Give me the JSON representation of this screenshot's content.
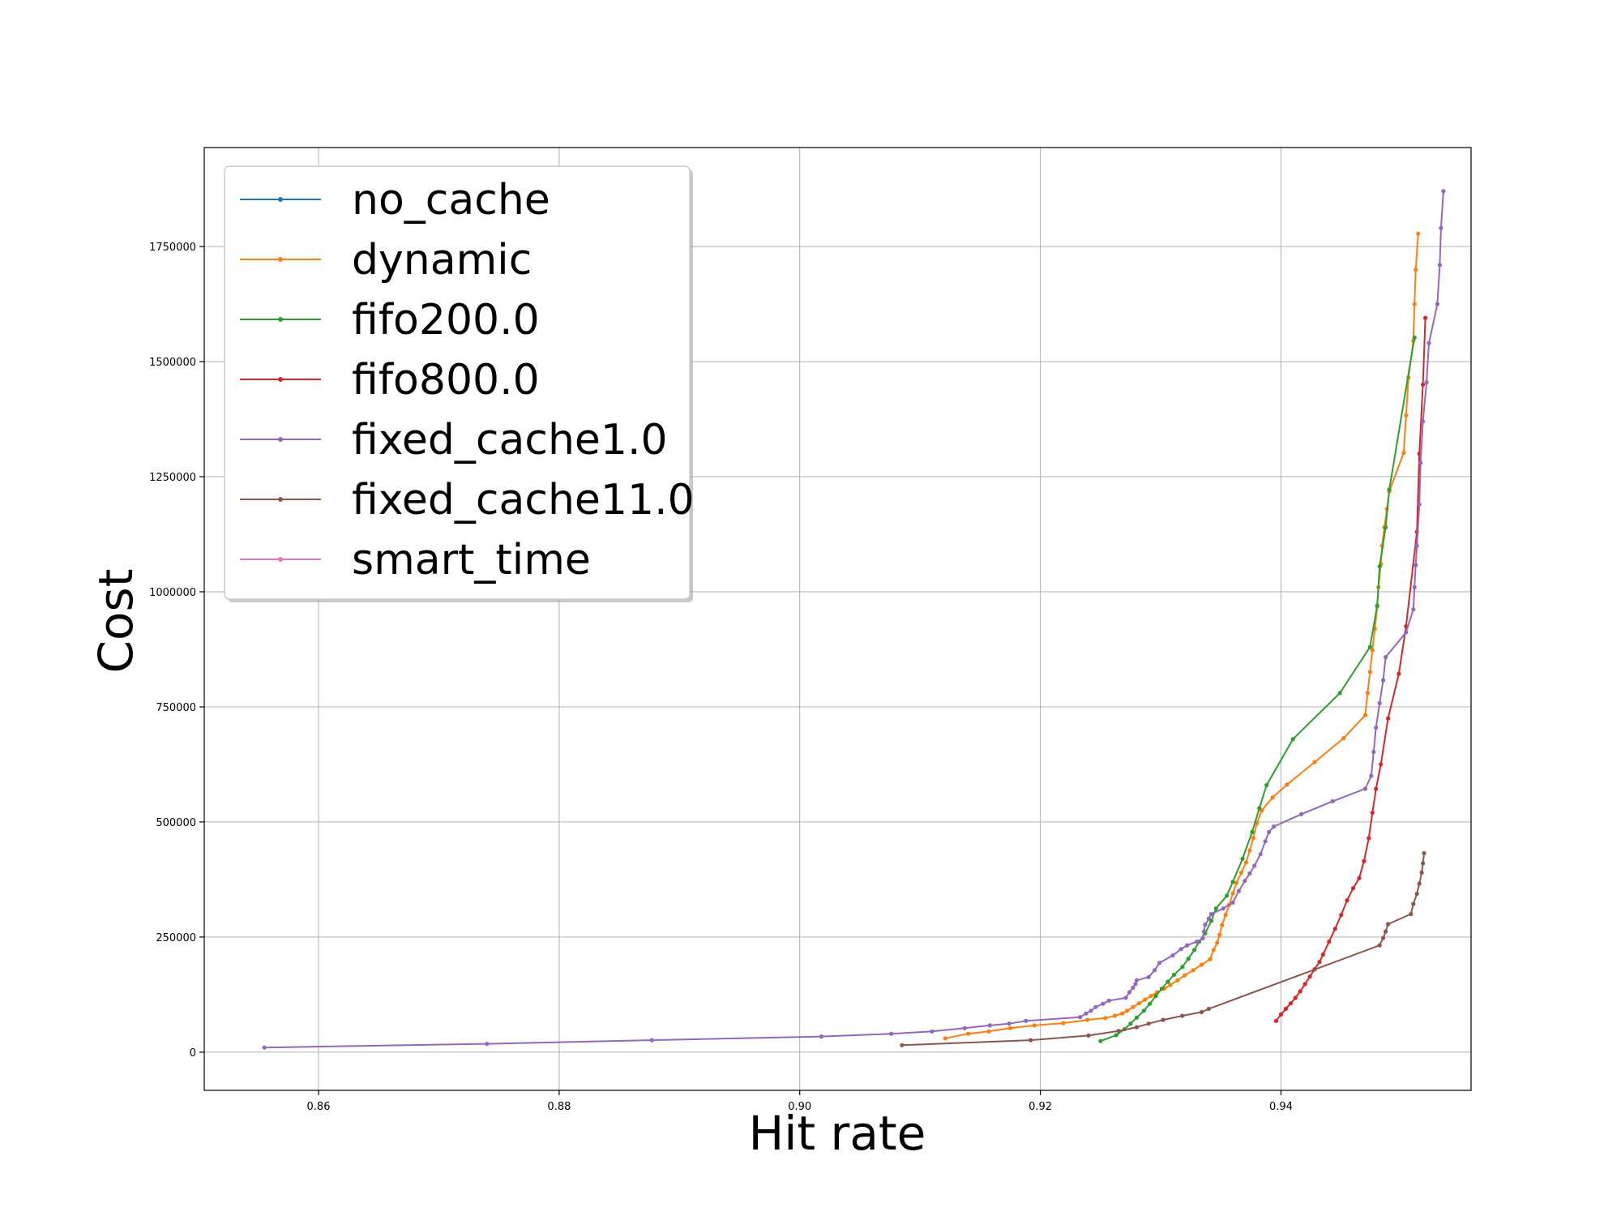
{
  "chart_data": {
    "type": "line",
    "title": "",
    "xlabel": "Hit rate",
    "ylabel": "Cost",
    "xlim": [
      0.8505,
      0.9558
    ],
    "ylim": [
      -83000,
      1965000
    ],
    "x_ticks": [
      0.86,
      0.88,
      0.9,
      0.92,
      0.94
    ],
    "x_tick_labels": [
      "0.86",
      "0.88",
      "0.90",
      "0.92",
      "0.94"
    ],
    "y_ticks": [
      0,
      250000,
      500000,
      750000,
      1000000,
      1250000,
      1500000,
      1750000
    ],
    "y_tick_labels": [
      "0",
      "250000",
      "500000",
      "750000",
      "1000000",
      "1250000",
      "1500000",
      "1750000"
    ],
    "grid": true,
    "legend_position": "upper-left",
    "series": [
      {
        "name": "no_cache",
        "color": "#1f77b4",
        "points": []
      },
      {
        "name": "dynamic",
        "color": "#ff7f0e",
        "points": [
          [
            0.9121,
            30000
          ],
          [
            0.914,
            40000
          ],
          [
            0.9157,
            45000
          ],
          [
            0.9175,
            52000
          ],
          [
            0.9195,
            58000
          ],
          [
            0.9219,
            63000
          ],
          [
            0.9239,
            70000
          ],
          [
            0.9254,
            74000
          ],
          [
            0.9262,
            79000
          ],
          [
            0.9268,
            84000
          ],
          [
            0.9272,
            90000
          ],
          [
            0.9277,
            98000
          ],
          [
            0.9282,
            106000
          ],
          [
            0.9287,
            114000
          ],
          [
            0.9292,
            122000
          ],
          [
            0.9297,
            130000
          ],
          [
            0.9303,
            138000
          ],
          [
            0.9308,
            146000
          ],
          [
            0.9314,
            156000
          ],
          [
            0.932,
            167000
          ],
          [
            0.9327,
            178000
          ],
          [
            0.9334,
            190000
          ],
          [
            0.9341,
            202000
          ],
          [
            0.9344,
            222000
          ],
          [
            0.9347,
            238000
          ],
          [
            0.9349,
            255000
          ],
          [
            0.9351,
            276000
          ],
          [
            0.9354,
            298000
          ],
          [
            0.9357,
            320000
          ],
          [
            0.936,
            345000
          ],
          [
            0.9363,
            368000
          ],
          [
            0.9367,
            390000
          ],
          [
            0.9371,
            412000
          ],
          [
            0.9374,
            438000
          ],
          [
            0.9377,
            465000
          ],
          [
            0.938,
            498000
          ],
          [
            0.9384,
            525000
          ],
          [
            0.9393,
            553000
          ],
          [
            0.9405,
            581000
          ],
          [
            0.9428,
            630000
          ],
          [
            0.9452,
            682000
          ],
          [
            0.947,
            732000
          ],
          [
            0.9472,
            780000
          ],
          [
            0.9474,
            826000
          ],
          [
            0.9476,
            873000
          ],
          [
            0.9478,
            920000
          ],
          [
            0.948,
            968000
          ],
          [
            0.9481,
            1010000
          ],
          [
            0.9483,
            1060000
          ],
          [
            0.9484,
            1100000
          ],
          [
            0.9486,
            1140000
          ],
          [
            0.9488,
            1180000
          ],
          [
            0.949,
            1218000
          ],
          [
            0.9502,
            1302000
          ],
          [
            0.9504,
            1383000
          ],
          [
            0.9506,
            1465000
          ],
          [
            0.951,
            1545000
          ],
          [
            0.9511,
            1625000
          ],
          [
            0.9512,
            1700000
          ],
          [
            0.9514,
            1778000
          ]
        ]
      },
      {
        "name": "fifo200.0",
        "color": "#2ca02c",
        "points": [
          [
            0.925,
            24000
          ],
          [
            0.9263,
            37000
          ],
          [
            0.927,
            50000
          ],
          [
            0.9275,
            62000
          ],
          [
            0.928,
            75000
          ],
          [
            0.9286,
            90000
          ],
          [
            0.9291,
            105000
          ],
          [
            0.9296,
            122000
          ],
          [
            0.9301,
            138000
          ],
          [
            0.9306,
            153000
          ],
          [
            0.9311,
            168000
          ],
          [
            0.9318,
            185000
          ],
          [
            0.9323,
            203000
          ],
          [
            0.9328,
            222000
          ],
          [
            0.9332,
            240000
          ],
          [
            0.9337,
            258000
          ],
          [
            0.9342,
            285000
          ],
          [
            0.9346,
            312000
          ],
          [
            0.9355,
            340000
          ],
          [
            0.936,
            370000
          ],
          [
            0.9368,
            420000
          ],
          [
            0.9376,
            478000
          ],
          [
            0.9382,
            530000
          ],
          [
            0.9388,
            580000
          ],
          [
            0.941,
            680000
          ],
          [
            0.9449,
            780000
          ],
          [
            0.9474,
            880000
          ],
          [
            0.948,
            970000
          ],
          [
            0.9482,
            1055000
          ],
          [
            0.9487,
            1140000
          ],
          [
            0.949,
            1222000
          ],
          [
            0.9511,
            1552000
          ]
        ]
      },
      {
        "name": "fifo800.0",
        "color": "#d62728",
        "points": [
          [
            0.9396,
            68000
          ],
          [
            0.94,
            82000
          ],
          [
            0.9404,
            94000
          ],
          [
            0.9408,
            106000
          ],
          [
            0.9412,
            118000
          ],
          [
            0.9416,
            132000
          ],
          [
            0.942,
            148000
          ],
          [
            0.9424,
            164000
          ],
          [
            0.9428,
            180000
          ],
          [
            0.9432,
            196000
          ],
          [
            0.9435,
            212000
          ],
          [
            0.944,
            240000
          ],
          [
            0.9445,
            268000
          ],
          [
            0.945,
            298000
          ],
          [
            0.9455,
            330000
          ],
          [
            0.946,
            356000
          ],
          [
            0.9465,
            378000
          ],
          [
            0.9469,
            415000
          ],
          [
            0.9473,
            465000
          ],
          [
            0.9476,
            520000
          ],
          [
            0.9479,
            572000
          ],
          [
            0.9483,
            625000
          ],
          [
            0.9489,
            725000
          ],
          [
            0.9498,
            822000
          ],
          [
            0.9504,
            925000
          ],
          [
            0.9513,
            1130000
          ],
          [
            0.9515,
            1300000
          ],
          [
            0.9518,
            1450000
          ],
          [
            0.952,
            1595000
          ]
        ]
      },
      {
        "name": "fixed_cache1.0",
        "color": "#9467bd",
        "points": [
          [
            0.8555,
            10000
          ],
          [
            0.874,
            18000
          ],
          [
            0.8877,
            26000
          ],
          [
            0.9018,
            34000
          ],
          [
            0.9076,
            40000
          ],
          [
            0.911,
            45000
          ],
          [
            0.9137,
            52000
          ],
          [
            0.9158,
            58000
          ],
          [
            0.9174,
            62000
          ],
          [
            0.9188,
            68000
          ],
          [
            0.9233,
            76000
          ],
          [
            0.9238,
            84000
          ],
          [
            0.9242,
            90000
          ],
          [
            0.9246,
            98000
          ],
          [
            0.9252,
            105000
          ],
          [
            0.9257,
            112000
          ],
          [
            0.9271,
            118000
          ],
          [
            0.9274,
            130000
          ],
          [
            0.9277,
            140000
          ],
          [
            0.9279,
            148000
          ],
          [
            0.928,
            156000
          ],
          [
            0.929,
            163000
          ],
          [
            0.9295,
            178000
          ],
          [
            0.9299,
            194000
          ],
          [
            0.931,
            210000
          ],
          [
            0.9317,
            224000
          ],
          [
            0.9322,
            232000
          ],
          [
            0.933,
            240000
          ],
          [
            0.9335,
            247000
          ],
          [
            0.9336,
            262000
          ],
          [
            0.9337,
            277000
          ],
          [
            0.934,
            290000
          ],
          [
            0.9342,
            300000
          ],
          [
            0.9352,
            312000
          ],
          [
            0.936,
            325000
          ],
          [
            0.9365,
            350000
          ],
          [
            0.937,
            372000
          ],
          [
            0.9374,
            388000
          ],
          [
            0.9378,
            405000
          ],
          [
            0.9383,
            430000
          ],
          [
            0.9387,
            458000
          ],
          [
            0.939,
            478000
          ],
          [
            0.9394,
            490000
          ],
          [
            0.9417,
            517000
          ],
          [
            0.9443,
            545000
          ],
          [
            0.947,
            572000
          ],
          [
            0.9475,
            600000
          ],
          [
            0.9477,
            652000
          ],
          [
            0.9479,
            705000
          ],
          [
            0.9482,
            758000
          ],
          [
            0.9485,
            808000
          ],
          [
            0.9487,
            858000
          ],
          [
            0.9504,
            912000
          ],
          [
            0.951,
            962000
          ],
          [
            0.9511,
            1010000
          ],
          [
            0.9512,
            1058000
          ],
          [
            0.9513,
            1100000
          ],
          [
            0.9515,
            1190000
          ],
          [
            0.9516,
            1280000
          ],
          [
            0.9518,
            1370000
          ],
          [
            0.9521,
            1455000
          ],
          [
            0.9523,
            1540000
          ],
          [
            0.953,
            1625000
          ],
          [
            0.9532,
            1710000
          ],
          [
            0.9533,
            1790000
          ],
          [
            0.9535,
            1870000
          ]
        ]
      },
      {
        "name": "fixed_cache11.0",
        "color": "#8c564b",
        "points": [
          [
            0.9085,
            15000
          ],
          [
            0.9192,
            26000
          ],
          [
            0.924,
            36000
          ],
          [
            0.9265,
            46000
          ],
          [
            0.928,
            54000
          ],
          [
            0.929,
            62000
          ],
          [
            0.9302,
            70000
          ],
          [
            0.9318,
            79000
          ],
          [
            0.9334,
            87000
          ],
          [
            0.934,
            94000
          ],
          [
            0.9482,
            232000
          ],
          [
            0.9485,
            248000
          ],
          [
            0.9487,
            262000
          ],
          [
            0.9489,
            278000
          ],
          [
            0.9508,
            300000
          ],
          [
            0.951,
            322000
          ],
          [
            0.9513,
            344000
          ],
          [
            0.9515,
            366000
          ],
          [
            0.9517,
            390000
          ],
          [
            0.9518,
            410000
          ],
          [
            0.9519,
            432000
          ]
        ]
      },
      {
        "name": "smart_time",
        "color": "#e377c2",
        "points": []
      }
    ]
  }
}
